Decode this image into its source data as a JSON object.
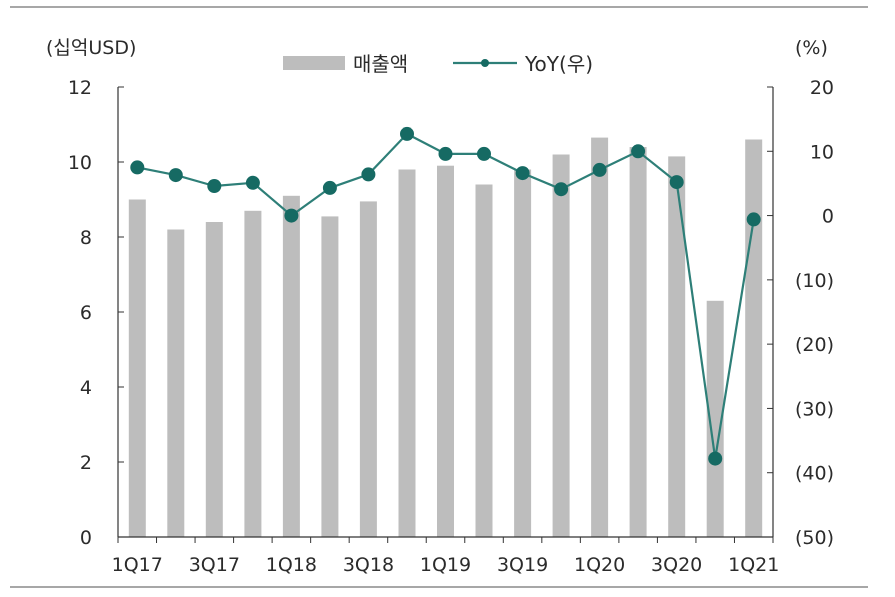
{
  "chart_data": {
    "type": "bar",
    "title": "",
    "y_left_unit": "(십억USD)",
    "y_right_unit": "(%)",
    "ylim_left": [
      0,
      12
    ],
    "ylim_right": [
      -50,
      20
    ],
    "y_left_ticks": [
      "0",
      "2",
      "4",
      "6",
      "8",
      "10",
      "12"
    ],
    "y_right_ticks": [
      "(50)",
      "(40)",
      "(30)",
      "(20)",
      "(10)",
      "0",
      "10",
      "20"
    ],
    "x_tick_labels": [
      "1Q17",
      "3Q17",
      "1Q18",
      "3Q18",
      "1Q19",
      "3Q19",
      "1Q20",
      "3Q20",
      "1Q21"
    ],
    "categories": [
      "1Q17",
      "2Q17",
      "3Q17",
      "4Q17",
      "1Q18",
      "2Q18",
      "3Q18",
      "4Q18",
      "1Q19",
      "2Q19",
      "3Q19",
      "4Q19",
      "1Q20",
      "2Q20",
      "3Q20",
      "4Q20",
      "1Q21"
    ],
    "series": [
      {
        "name": "매출액",
        "type": "bar",
        "axis": "left",
        "color": "#bdbdbd",
        "values": [
          9.0,
          8.2,
          8.4,
          8.7,
          9.1,
          8.55,
          8.95,
          9.8,
          9.9,
          9.4,
          9.8,
          10.2,
          10.65,
          10.4,
          10.15,
          6.3,
          10.6
        ]
      },
      {
        "name": "YoY(우)",
        "type": "line",
        "axis": "right",
        "color": "#2e7f78",
        "marker_color": "#166a63",
        "values": [
          7.5,
          6.3,
          4.6,
          5.1,
          0.0,
          4.3,
          6.4,
          12.7,
          9.6,
          9.6,
          6.6,
          4.1,
          7.1,
          10.0,
          5.2,
          -37.8,
          -0.6
        ]
      }
    ],
    "legend_position": "top-center",
    "grid": false
  }
}
